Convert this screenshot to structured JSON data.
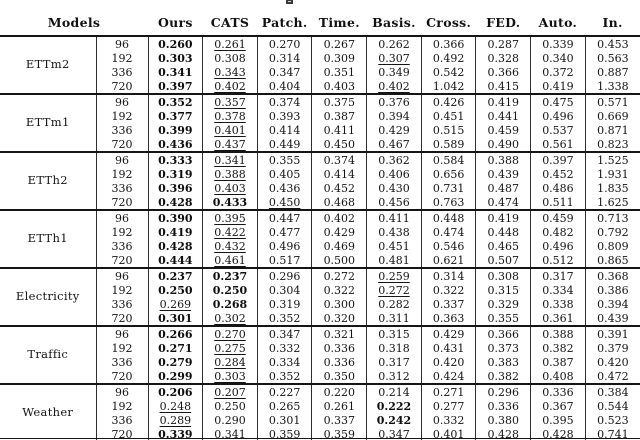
{
  "colors": {
    "background": "#ffffff",
    "text": "#141414",
    "rule": "#151515",
    "grid_line": "#2f2f2f"
  },
  "table": {
    "models_header": "Models",
    "method_headers": [
      "Ours",
      "CATS",
      "Patch.",
      "Time.",
      "Basis.",
      "Cross.",
      "FED.",
      "Auto.",
      "In."
    ],
    "emphasis_legend": {
      "bold": "best",
      "underline": "second-best"
    },
    "groups": [
      {
        "dataset": "ETTm2",
        "rows": [
          {
            "h": "96",
            "v": [
              "0.260",
              "0.261",
              "0.270",
              "0.267",
              "0.262",
              "0.366",
              "0.287",
              "0.339",
              "0.453"
            ],
            "b": [
              0
            ],
            "u": [
              1
            ]
          },
          {
            "h": "192",
            "v": [
              "0.303",
              "0.308",
              "0.314",
              "0.309",
              "0.307",
              "0.492",
              "0.328",
              "0.340",
              "0.563"
            ],
            "b": [
              0
            ],
            "u": [
              4
            ]
          },
          {
            "h": "336",
            "v": [
              "0.341",
              "0.343",
              "0.347",
              "0.351",
              "0.349",
              "0.542",
              "0.366",
              "0.372",
              "0.887"
            ],
            "b": [
              0
            ],
            "u": [
              1
            ]
          },
          {
            "h": "720",
            "v": [
              "0.397",
              "0.402",
              "0.404",
              "0.403",
              "0.402",
              "1.042",
              "0.415",
              "0.419",
              "1.338"
            ],
            "b": [
              0
            ],
            "u": [
              1,
              4
            ]
          }
        ]
      },
      {
        "dataset": "ETTm1",
        "rows": [
          {
            "h": "96",
            "v": [
              "0.352",
              "0.357",
              "0.374",
              "0.375",
              "0.376",
              "0.426",
              "0.419",
              "0.475",
              "0.571"
            ],
            "b": [
              0
            ],
            "u": [
              1
            ]
          },
          {
            "h": "192",
            "v": [
              "0.377",
              "0.378",
              "0.393",
              "0.387",
              "0.394",
              "0.451",
              "0.441",
              "0.496",
              "0.669"
            ],
            "b": [
              0
            ],
            "u": [
              1
            ]
          },
          {
            "h": "336",
            "v": [
              "0.399",
              "0.401",
              "0.414",
              "0.411",
              "0.429",
              "0.515",
              "0.459",
              "0.537",
              "0.871"
            ],
            "b": [
              0
            ],
            "u": [
              1
            ]
          },
          {
            "h": "720",
            "v": [
              "0.436",
              "0.437",
              "0.449",
              "0.450",
              "0.467",
              "0.589",
              "0.490",
              "0.561",
              "0.823"
            ],
            "b": [
              0
            ],
            "u": [
              1
            ]
          }
        ]
      },
      {
        "dataset": "ETTh2",
        "rows": [
          {
            "h": "96",
            "v": [
              "0.333",
              "0.341",
              "0.355",
              "0.374",
              "0.362",
              "0.584",
              "0.388",
              "0.397",
              "1.525"
            ],
            "b": [
              0
            ],
            "u": [
              1
            ]
          },
          {
            "h": "192",
            "v": [
              "0.319",
              "0.388",
              "0.405",
              "0.414",
              "0.406",
              "0.656",
              "0.439",
              "0.452",
              "1.931"
            ],
            "b": [
              0
            ],
            "u": [
              1
            ]
          },
          {
            "h": "336",
            "v": [
              "0.396",
              "0.403",
              "0.436",
              "0.452",
              "0.430",
              "0.731",
              "0.487",
              "0.486",
              "1.835"
            ],
            "b": [
              0
            ],
            "u": [
              1
            ]
          },
          {
            "h": "720",
            "v": [
              "0.428",
              "0.433",
              "0.450",
              "0.468",
              "0.456",
              "0.763",
              "0.474",
              "0.511",
              "1.625"
            ],
            "b": [
              0,
              1
            ],
            "u": [
              2
            ]
          }
        ]
      },
      {
        "dataset": "ETTh1",
        "rows": [
          {
            "h": "96",
            "v": [
              "0.390",
              "0.395",
              "0.447",
              "0.402",
              "0.411",
              "0.448",
              "0.419",
              "0.459",
              "0.713"
            ],
            "b": [
              0
            ],
            "u": [
              1
            ]
          },
          {
            "h": "192",
            "v": [
              "0.419",
              "0.422",
              "0.477",
              "0.429",
              "0.438",
              "0.474",
              "0.448",
              "0.482",
              "0.792"
            ],
            "b": [
              0
            ],
            "u": [
              1
            ]
          },
          {
            "h": "336",
            "v": [
              "0.428",
              "0.432",
              "0.496",
              "0.469",
              "0.451",
              "0.546",
              "0.465",
              "0.496",
              "0.809"
            ],
            "b": [
              0
            ],
            "u": [
              1
            ]
          },
          {
            "h": "720",
            "v": [
              "0.444",
              "0.461",
              "0.517",
              "0.500",
              "0.481",
              "0.621",
              "0.507",
              "0.512",
              "0.865"
            ],
            "b": [
              0
            ],
            "u": [
              1
            ]
          }
        ]
      },
      {
        "dataset": "Electricity",
        "rows": [
          {
            "h": "96",
            "v": [
              "0.237",
              "0.237",
              "0.296",
              "0.272",
              "0.259",
              "0.314",
              "0.308",
              "0.317",
              "0.368"
            ],
            "b": [
              0,
              1
            ],
            "u": [
              4
            ]
          },
          {
            "h": "192",
            "v": [
              "0.250",
              "0.250",
              "0.304",
              "0.322",
              "0.272",
              "0.322",
              "0.315",
              "0.334",
              "0.386"
            ],
            "b": [
              0,
              1
            ],
            "u": [
              4
            ]
          },
          {
            "h": "336",
            "v": [
              "0.269",
              "0.268",
              "0.319",
              "0.300",
              "0.282",
              "0.337",
              "0.329",
              "0.338",
              "0.394"
            ],
            "b": [
              1
            ],
            "u": [
              0
            ]
          },
          {
            "h": "720",
            "v": [
              "0.301",
              "0.302",
              "0.352",
              "0.320",
              "0.311",
              "0.363",
              "0.355",
              "0.361",
              "0.439"
            ],
            "b": [
              0
            ],
            "u": [
              1
            ]
          }
        ]
      },
      {
        "dataset": "Traffic",
        "rows": [
          {
            "h": "96",
            "v": [
              "0.266",
              "0.270",
              "0.347",
              "0.321",
              "0.315",
              "0.429",
              "0.366",
              "0.388",
              "0.391"
            ],
            "b": [
              0
            ],
            "u": [
              1
            ]
          },
          {
            "h": "192",
            "v": [
              "0.271",
              "0.275",
              "0.332",
              "0.336",
              "0.318",
              "0.431",
              "0.373",
              "0.382",
              "0.379"
            ],
            "b": [
              0
            ],
            "u": [
              1
            ]
          },
          {
            "h": "336",
            "v": [
              "0.279",
              "0.284",
              "0.334",
              "0.336",
              "0.317",
              "0.420",
              "0.383",
              "0.387",
              "0.420"
            ],
            "b": [
              0
            ],
            "u": [
              1
            ]
          },
          {
            "h": "720",
            "v": [
              "0.299",
              "0.303",
              "0.352",
              "0.350",
              "0.312",
              "0.424",
              "0.382",
              "0.408",
              "0.472"
            ],
            "b": [
              0
            ],
            "u": [
              1
            ]
          }
        ]
      },
      {
        "dataset": "Weather",
        "rows": [
          {
            "h": "96",
            "v": [
              "0.206",
              "0.207",
              "0.227",
              "0.220",
              "0.214",
              "0.271",
              "0.296",
              "0.336",
              "0.384"
            ],
            "b": [
              0
            ],
            "u": [
              1
            ]
          },
          {
            "h": "192",
            "v": [
              "0.248",
              "0.250",
              "0.265",
              "0.261",
              "0.222",
              "0.277",
              "0.336",
              "0.367",
              "0.544"
            ],
            "b": [
              4
            ],
            "u": [
              0
            ]
          },
          {
            "h": "336",
            "v": [
              "0.289",
              "0.290",
              "0.301",
              "0.337",
              "0.242",
              "0.332",
              "0.380",
              "0.395",
              "0.523"
            ],
            "b": [
              4
            ],
            "u": [
              0
            ]
          },
          {
            "h": "720",
            "v": [
              "0.339",
              "0.341",
              "0.359",
              "0.359",
              "0.347",
              "0.401",
              "0.428",
              "0.428",
              "0.741"
            ],
            "b": [
              0
            ],
            "u": [
              1
            ]
          }
        ]
      }
    ]
  }
}
